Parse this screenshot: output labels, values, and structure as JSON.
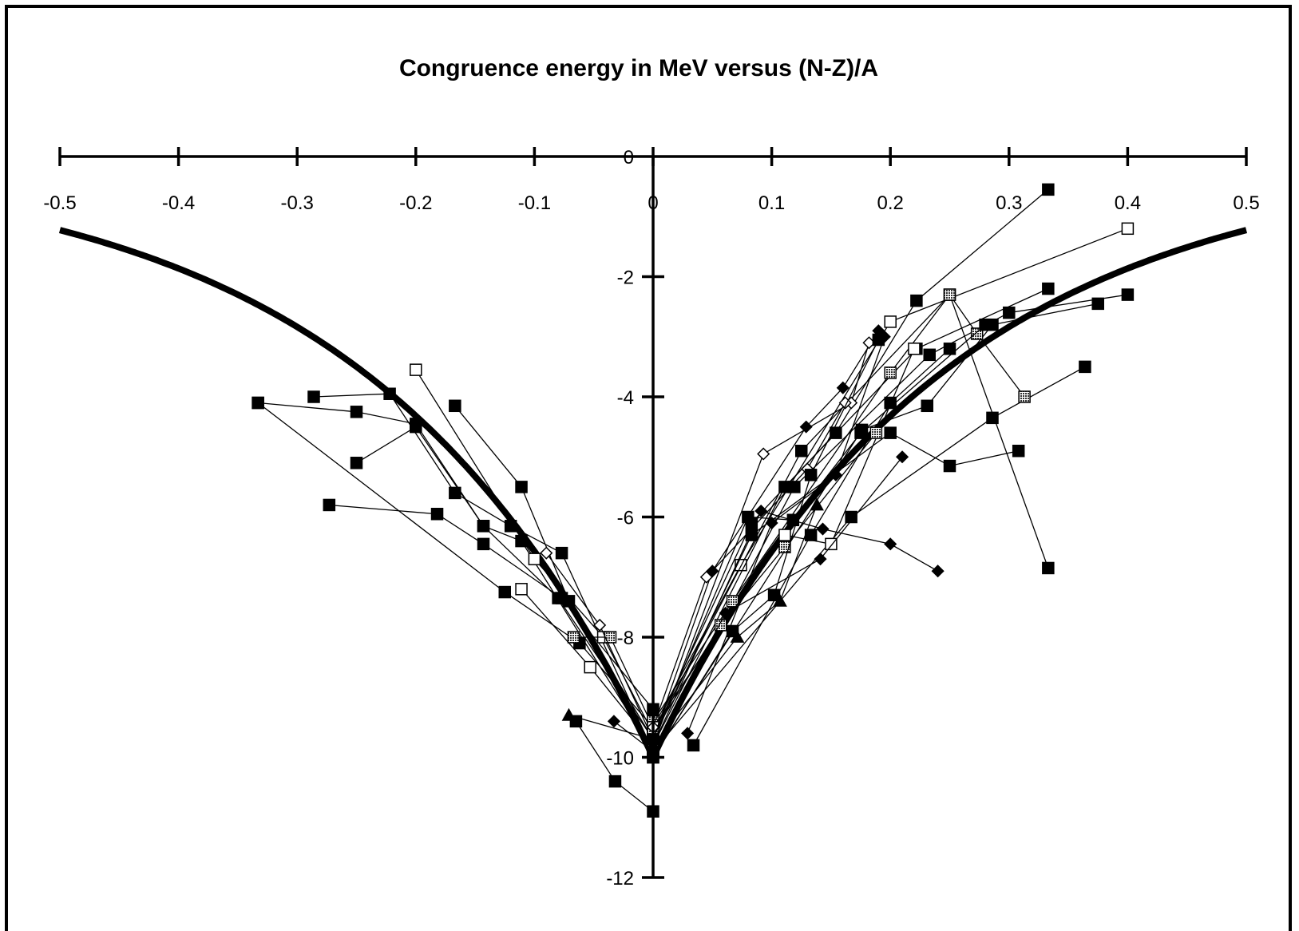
{
  "chart_data": {
    "type": "scatter",
    "title": "Congruence energy in MeV versus (N-Z)/A",
    "xlabel": "",
    "ylabel": "",
    "xlim": [
      -0.5,
      0.5
    ],
    "ylim": [
      -12,
      0
    ],
    "grid": false,
    "legend": "none",
    "x_ticks": [
      {
        "value": -0.5,
        "label": "-0.5"
      },
      {
        "value": -0.4,
        "label": "-0.4"
      },
      {
        "value": -0.3,
        "label": "-0.3"
      },
      {
        "value": -0.2,
        "label": "-0.2"
      },
      {
        "value": -0.1,
        "label": "-0.1"
      },
      {
        "value": 0,
        "label": "0"
      },
      {
        "value": 0.1,
        "label": "0.1"
      },
      {
        "value": 0.2,
        "label": "0.2"
      },
      {
        "value": 0.3,
        "label": "0.3"
      },
      {
        "value": 0.4,
        "label": "0.4"
      },
      {
        "value": 0.5,
        "label": "0.5"
      }
    ],
    "y_ticks": [
      {
        "value": 0,
        "label": "0"
      },
      {
        "value": -2,
        "label": "-2"
      },
      {
        "value": -4,
        "label": "-4"
      },
      {
        "value": -6,
        "label": "-6"
      },
      {
        "value": -8,
        "label": "-8"
      },
      {
        "value": -10,
        "label": "-10"
      },
      {
        "value": -12,
        "label": "-12"
      }
    ],
    "theory_curve": {
      "formula": "-10*exp(-4.2*|x|)",
      "color": "#000000"
    },
    "series": [
      {
        "marker": "square-filled",
        "x": [
          -0.333,
          -0.25,
          -0.2,
          -0.143,
          -0.111,
          0
        ],
        "y": [
          -4.1,
          -4.25,
          -4.45,
          -6.15,
          -6.4,
          -9.9
        ]
      },
      {
        "marker": "square-filled",
        "x": [
          -0.286,
          -0.222,
          -0.167,
          -0.12,
          -0.077,
          0
        ],
        "y": [
          -4.0,
          -3.95,
          -5.6,
          -6.15,
          -6.6,
          -9.9
        ]
      },
      {
        "marker": "square-filled",
        "x": [
          -0.25,
          -0.2,
          -0.143,
          -0.08,
          0
        ],
        "y": [
          -5.1,
          -4.5,
          -6.15,
          -7.35,
          -9.7
        ]
      },
      {
        "marker": "square-filled",
        "x": [
          -0.273,
          -0.182,
          -0.143,
          -0.077,
          0
        ],
        "y": [
          -5.8,
          -5.95,
          -6.45,
          -7.35,
          -9.2
        ]
      },
      {
        "marker": "square-filled",
        "x": [
          -0.333,
          -0.125,
          -0.062,
          0
        ],
        "y": [
          -4.1,
          -7.25,
          -8.1,
          -9.5
        ]
      },
      {
        "marker": "square-filled",
        "x": [
          -0.167,
          -0.111,
          -0.071,
          0
        ],
        "y": [
          -4.15,
          -5.5,
          -7.4,
          -9.7
        ]
      },
      {
        "marker": "square-open",
        "x": [
          -0.2,
          -0.1,
          -0.042,
          0
        ],
        "y": [
          -3.55,
          -6.7,
          -8.0,
          -9.6
        ]
      },
      {
        "marker": "square-open",
        "x": [
          -0.111,
          -0.053,
          0
        ],
        "y": [
          -7.2,
          -8.5,
          -9.8
        ]
      },
      {
        "marker": "square-dotted",
        "x": [
          -0.067,
          -0.036,
          0
        ],
        "y": [
          -8.0,
          -8.0,
          -9.5
        ]
      },
      {
        "marker": "diamond-open",
        "x": [
          -0.09,
          -0.045,
          0
        ],
        "y": [
          -6.6,
          -7.8,
          -9.7
        ]
      },
      {
        "marker": "triangle-filled",
        "x": [
          -0.071,
          0
        ],
        "y": [
          -9.3,
          -9.7
        ]
      },
      {
        "marker": "square-filled",
        "x": [
          -0.065,
          -0.032,
          0
        ],
        "y": [
          -9.4,
          -10.4,
          -10.9
        ]
      },
      {
        "marker": "diamond-filled",
        "x": [
          -0.033,
          0
        ],
        "y": [
          -9.4,
          -9.9
        ]
      },
      {
        "marker": "square-filled",
        "x": [
          0,
          0.083,
          0.154,
          0.222,
          0.333
        ],
        "y": [
          -9.6,
          -6.1,
          -4.6,
          -2.4,
          -0.55
        ]
      },
      {
        "marker": "square-open",
        "x": [
          0,
          0.074,
          0.2,
          0.4
        ],
        "y": [
          -9.5,
          -6.8,
          -2.75,
          -1.2
        ]
      },
      {
        "marker": "square-filled",
        "x": [
          0,
          0.111,
          0.222,
          0.333
        ],
        "y": [
          -9.8,
          -5.5,
          -3.2,
          -2.2
        ]
      },
      {
        "marker": "square-filled",
        "x": [
          0,
          0.119,
          0.233,
          0.3,
          0.4
        ],
        "y": [
          -9.9,
          -5.5,
          -3.3,
          -2.6,
          -2.3
        ]
      },
      {
        "marker": "square-filled",
        "x": [
          0,
          0.176,
          0.231,
          0.286,
          0.375
        ],
        "y": [
          -10.0,
          -4.55,
          -4.15,
          -2.8,
          -2.45
        ]
      },
      {
        "marker": "square-filled",
        "x": [
          0,
          0.167,
          0.286,
          0.364
        ],
        "y": [
          -9.9,
          -6.0,
          -4.35,
          -3.5
        ]
      },
      {
        "marker": "square-filled",
        "x": [
          0.034,
          0.133,
          0.2,
          0.25
        ],
        "y": [
          -9.8,
          -6.3,
          -4.1,
          -3.2
        ]
      },
      {
        "marker": "square-filled",
        "x": [
          0,
          0.125,
          0.25,
          0.333
        ],
        "y": [
          -9.6,
          -4.9,
          -2.3,
          -6.85
        ]
      },
      {
        "marker": "square-filled",
        "x": [
          0,
          0.083,
          0.2,
          0.25,
          0.308
        ],
        "y": [
          -9.7,
          -6.3,
          -4.6,
          -5.15,
          -4.9
        ]
      },
      {
        "marker": "square-dotted",
        "x": [
          0,
          0.067,
          0.2,
          0.25,
          0.273,
          0.313
        ],
        "y": [
          -9.4,
          -7.4,
          -3.6,
          -2.3,
          -2.95,
          -4.0
        ]
      },
      {
        "marker": "square-open",
        "x": [
          0,
          0.111,
          0.15,
          0.22
        ],
        "y": [
          -9.5,
          -6.3,
          -6.45,
          -3.2
        ]
      },
      {
        "marker": "square-dotted",
        "x": [
          0,
          0.057,
          0.111,
          0.188
        ],
        "y": [
          -9.6,
          -7.8,
          -6.5,
          -4.6
        ]
      },
      {
        "marker": "diamond-filled",
        "x": [
          0,
          0.091,
          0.143,
          0.2,
          0.24
        ],
        "y": [
          -9.8,
          -5.9,
          -6.2,
          -6.45,
          -6.9
        ]
      },
      {
        "marker": "diamond-filled",
        "x": [
          0.029,
          0.1,
          0.154,
          0.195
        ],
        "y": [
          -9.6,
          -6.1,
          -5.3,
          -3.0
        ]
      },
      {
        "marker": "diamond-filled",
        "x": [
          0,
          0.05,
          0.129,
          0.16,
          0.19
        ],
        "y": [
          -9.7,
          -6.9,
          -4.5,
          -3.85,
          -2.9
        ]
      },
      {
        "marker": "diamond-open",
        "x": [
          0,
          0.093,
          0.167,
          0.182
        ],
        "y": [
          -9.8,
          -4.95,
          -4.1,
          -3.1
        ]
      },
      {
        "marker": "diamond-open",
        "x": [
          0,
          0.045,
          0.13,
          0.162
        ],
        "y": [
          -9.5,
          -7.0,
          -5.2,
          -4.1
        ]
      },
      {
        "marker": "diamond-filled",
        "x": [
          0,
          0.061,
          0.141,
          0.21
        ],
        "y": [
          -9.9,
          -7.6,
          -6.7,
          -5.0
        ]
      },
      {
        "marker": "triangle-filled",
        "x": [
          0,
          0.071,
          0.107,
          0.138
        ],
        "y": [
          -9.8,
          -8.0,
          -7.4,
          -5.8
        ]
      },
      {
        "marker": "square-filled",
        "x": [
          0,
          0.08,
          0.118,
          0.175,
          0.28
        ],
        "y": [
          -9.7,
          -6.0,
          -6.05,
          -4.6,
          -2.8
        ]
      },
      {
        "marker": "square-filled",
        "x": [
          0,
          0.067,
          0.102,
          0.133,
          0.19
        ],
        "y": [
          -10.0,
          -7.9,
          -7.3,
          -5.3,
          -3.05
        ]
      }
    ]
  }
}
